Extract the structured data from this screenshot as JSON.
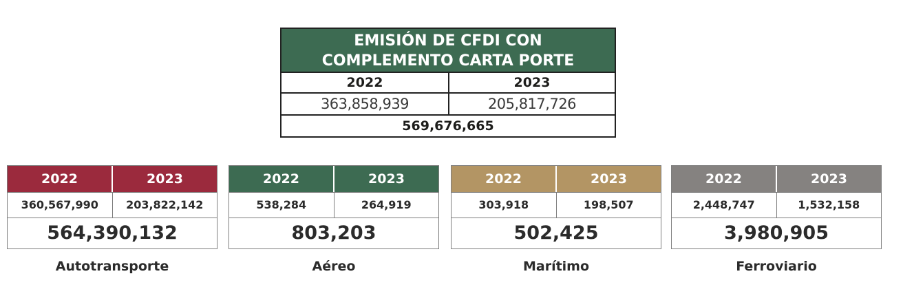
{
  "summary": {
    "title_line1": "EMISIÓN DE CFDI CON",
    "title_line2": "COMPLEMENTO CARTA PORTE",
    "year_2022": "2022",
    "year_2023": "2023",
    "value_2022": "363,858,939",
    "value_2023": "205,817,726",
    "total": "569,676,665",
    "header_color": "#3d6b52"
  },
  "modes": [
    {
      "label": "Autotransporte",
      "year_2022": "2022",
      "year_2023": "2023",
      "value_2022": "360,567,990",
      "value_2023": "203,822,142",
      "total": "564,390,132",
      "color": "#9b2a3d"
    },
    {
      "label": "Aéreo",
      "year_2022": "2022",
      "year_2023": "2023",
      "value_2022": "538,284",
      "value_2023": "264,919",
      "total": "803,203",
      "color": "#3d6b52"
    },
    {
      "label": "Marítimo",
      "year_2022": "2022",
      "year_2023": "2023",
      "value_2022": "303,918",
      "value_2023": "198,507",
      "total": "502,425",
      "color": "#b39564"
    },
    {
      "label": "Ferroviario",
      "year_2022": "2022",
      "year_2023": "2023",
      "value_2022": "2,448,747",
      "value_2023": "1,532,158",
      "total": "3,980,905",
      "color": "#858280"
    }
  ]
}
